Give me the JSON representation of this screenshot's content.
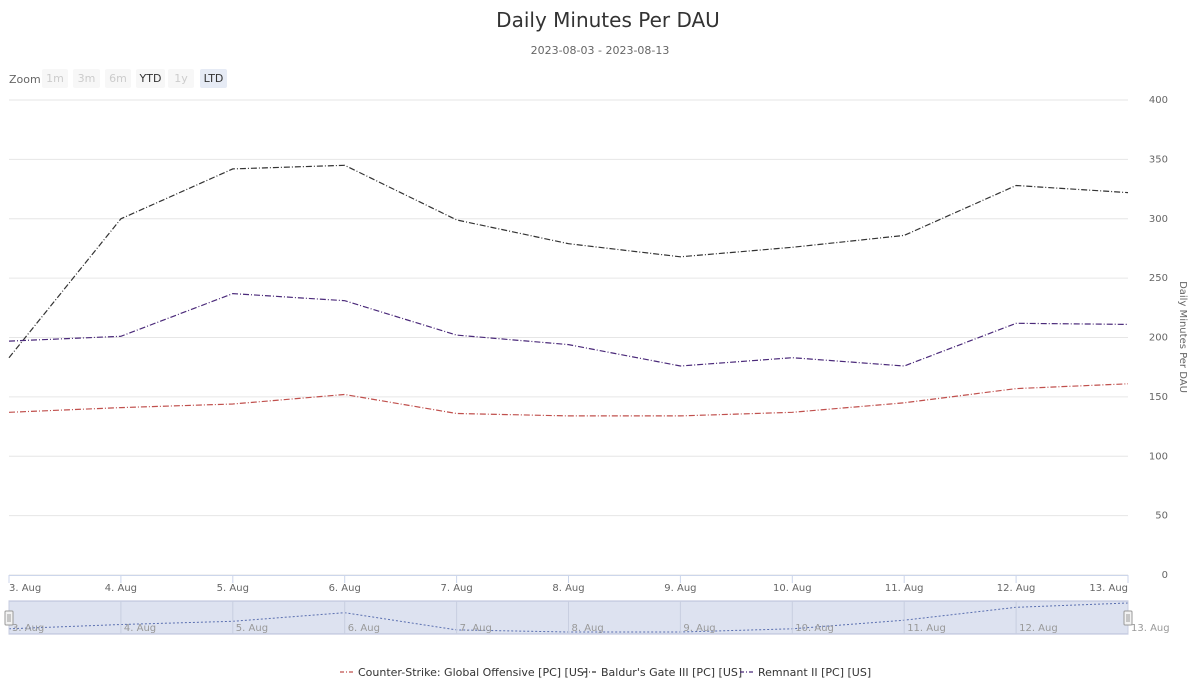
{
  "zoom": {
    "label": "Zoom",
    "buttons": [
      {
        "label": "1m",
        "state": "disabled"
      },
      {
        "label": "3m",
        "state": "disabled"
      },
      {
        "label": "6m",
        "state": "disabled"
      },
      {
        "label": "YTD",
        "state": "normal"
      },
      {
        "label": "1y",
        "state": "disabled"
      },
      {
        "label": "LTD",
        "state": "active"
      }
    ]
  },
  "chart_data": {
    "type": "line",
    "title": "Daily Minutes Per DAU",
    "subtitle": "2023-08-03 - 2023-08-13",
    "ylabel": "Daily Minutes Per DAU",
    "ylim": [
      0,
      400
    ],
    "yticks": [
      0,
      50,
      100,
      150,
      200,
      250,
      300,
      350,
      400
    ],
    "y_axis_side": "right",
    "grid": true,
    "legend_position": "bottom-center",
    "categories": [
      "3. Aug",
      "4. Aug",
      "5. Aug",
      "6. Aug",
      "7. Aug",
      "8. Aug",
      "9. Aug",
      "10. Aug",
      "11. Aug",
      "12. Aug",
      "13. Aug"
    ],
    "series": [
      {
        "name": "Counter-Strike: Global Offensive [PC] [US]",
        "color": "#c0504d",
        "values": [
          137,
          141,
          144,
          152,
          136,
          134,
          134,
          137,
          145,
          157,
          161
        ]
      },
      {
        "name": "Baldur's Gate III [PC] [US]",
        "color": "#333333",
        "values": [
          183,
          300,
          342,
          345,
          299,
          279,
          268,
          276,
          286,
          328,
          322
        ]
      },
      {
        "name": "Remnant II [PC] [US]",
        "color": "#4b2a7a",
        "values": [
          197,
          201,
          237,
          231,
          202,
          194,
          176,
          183,
          176,
          212,
          211
        ]
      }
    ],
    "navigator": {
      "categories": [
        "3. Aug",
        "4. Aug",
        "5. Aug",
        "6. Aug",
        "7. Aug",
        "8. Aug",
        "9. Aug",
        "10. Aug",
        "11. Aug",
        "12. Aug",
        "13. Aug"
      ],
      "values": [
        137,
        141,
        144,
        152,
        136,
        134,
        134,
        137,
        145,
        157,
        161
      ]
    }
  }
}
